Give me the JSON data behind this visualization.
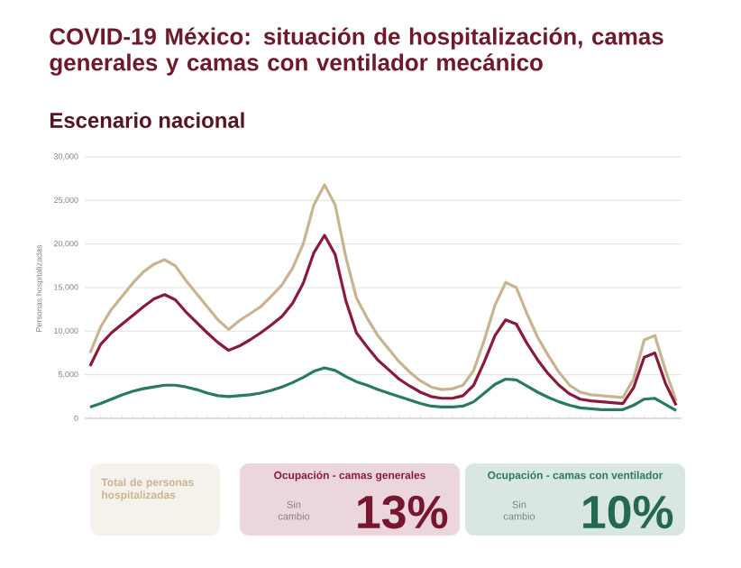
{
  "chart_data": {
    "type": "line",
    "title": "COVID-19 México: situación de hospitalización, camas generales y camas con ventilador mecánico",
    "subtitle": "Escenario nacional",
    "ylabel": "Personas hospitalizadas",
    "categories": [
      null,
      null,
      null,
      null,
      null,
      null,
      null,
      null,
      null,
      null,
      null,
      null,
      null,
      null,
      null,
      null,
      null,
      null,
      null,
      null,
      null,
      null,
      null,
      null,
      null,
      null,
      null,
      null,
      null,
      null,
      null,
      null,
      null,
      null,
      null,
      null,
      null,
      null,
      null,
      null,
      null,
      null,
      null,
      null,
      null,
      null,
      null,
      null,
      null,
      null,
      null,
      null,
      null,
      null,
      null,
      null
    ],
    "series": [
      {
        "name": "Total de personas hospitalizadas",
        "color": "#c9b48f",
        "values": [
          7500,
          10500,
          12500,
          14000,
          15500,
          16800,
          17700,
          18200,
          17500,
          15800,
          14300,
          12800,
          11300,
          10200,
          11200,
          12000,
          12800,
          14000,
          15300,
          17200,
          20000,
          24500,
          26800,
          24500,
          18500,
          13800,
          11500,
          9500,
          8000,
          6500,
          5300,
          4300,
          3600,
          3300,
          3400,
          3800,
          5500,
          9000,
          13000,
          15600,
          15000,
          12000,
          9300,
          7200,
          5300,
          3800,
          3000,
          2700,
          2600,
          2500,
          2400,
          4500,
          9000,
          9500,
          5500,
          2000
        ]
      },
      {
        "name": "Ocupación - camas generales",
        "color": "#8b1a3a",
        "values": [
          6000,
          8500,
          9800,
          10800,
          11800,
          12800,
          13700,
          14200,
          13600,
          12200,
          11000,
          9800,
          8700,
          7800,
          8300,
          9000,
          9800,
          10700,
          11700,
          13200,
          15500,
          19000,
          21000,
          18800,
          13500,
          9800,
          8200,
          6700,
          5600,
          4500,
          3700,
          3000,
          2500,
          2300,
          2300,
          2600,
          3800,
          6500,
          9500,
          11300,
          10800,
          8600,
          6700,
          5100,
          3800,
          2800,
          2200,
          2000,
          1900,
          1800,
          1700,
          3500,
          7000,
          7500,
          4000,
          1500
        ]
      },
      {
        "name": "Ocupación - camas con ventilador",
        "color": "#2a7a5e",
        "values": [
          1300,
          1700,
          2200,
          2700,
          3100,
          3400,
          3600,
          3800,
          3800,
          3600,
          3300,
          2900,
          2600,
          2500,
          2600,
          2700,
          2900,
          3200,
          3600,
          4100,
          4700,
          5400,
          5800,
          5500,
          4800,
          4200,
          3800,
          3300,
          2900,
          2500,
          2100,
          1700,
          1400,
          1300,
          1300,
          1400,
          1900,
          2900,
          3900,
          4500,
          4400,
          3700,
          3000,
          2400,
          1900,
          1500,
          1200,
          1100,
          1000,
          1000,
          1000,
          1500,
          2200,
          2300,
          1600,
          900
        ]
      }
    ],
    "ylim": [
      0,
      30000
    ],
    "yticks": [
      {
        "value": 0,
        "label": "0"
      },
      {
        "value": 5000,
        "label": "5,000"
      },
      {
        "value": 10000,
        "label": "10,000"
      },
      {
        "value": 15000,
        "label": "15,000"
      },
      {
        "value": 20000,
        "label": "20,000"
      },
      {
        "value": 25000,
        "label": "25,000"
      },
      {
        "value": 30000,
        "label": "30,000"
      }
    ],
    "grid": "y",
    "legend": "bottom",
    "marker": "none",
    "line_style": "solid",
    "annotations": [
      "Sin cambio",
      "13%",
      "Sin cambio",
      "10%"
    ]
  }
}
